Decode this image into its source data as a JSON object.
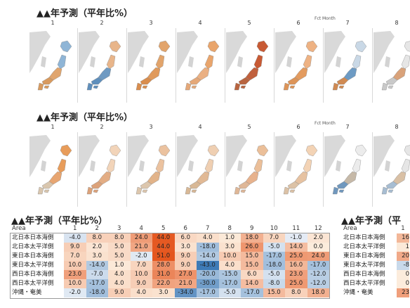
{
  "section1": {
    "title": "▲▲年予測（平年比%）",
    "fct_label": "Fct Month",
    "months": [
      "1",
      "2",
      "3",
      "4",
      "5",
      "6",
      "7",
      "8"
    ],
    "map_colors": [
      {
        "n": "#8fb5d6",
        "c": "#e0a56e",
        "s": "#d89a5e"
      },
      {
        "n": "#e8b58a",
        "c": "#6f9ac2",
        "s": "#5f8fbc"
      },
      {
        "n": "#e2a46b",
        "c": "#e09a5c",
        "s": "#d98d4d"
      },
      {
        "n": "#e9a56c",
        "c": "#eab083",
        "s": "#e5a878"
      },
      {
        "n": "#c85a34",
        "c": "#c0603d",
        "s": "#b8643f"
      },
      {
        "n": "#eeb283",
        "c": "#e39b5f",
        "s": "#dd9458"
      },
      {
        "n": "#c9d8e6",
        "c": "#6d9bc4",
        "s": "#d08a52"
      },
      {
        "n": "#e6e6e6",
        "c": "#d9a27a",
        "s": "#c9c9c9"
      }
    ]
  },
  "section2": {
    "title": "▲▲年予測（平年比%）",
    "fct_label": "Fct Month",
    "months": [
      "1",
      "2",
      "3",
      "4",
      "5",
      "6",
      "7",
      "8"
    ],
    "map_colors": [
      {
        "n": "#e89c5a",
        "c": "#e7a571",
        "s": "#d9c6ae"
      },
      {
        "n": "#f2d4b9",
        "c": "#e3ad84",
        "s": "#dca27a"
      },
      {
        "n": "#ebc29f",
        "c": "#e2b389",
        "s": "#dcc6ad"
      },
      {
        "n": "#efcfb2",
        "c": "#e1b995",
        "s": "#d8b896"
      },
      {
        "n": "#ebbf99",
        "c": "#e7b28d",
        "s": "#dfb797"
      },
      {
        "n": "#f3d3b5",
        "c": "#e6c2a1",
        "s": "#dcc2a6"
      },
      {
        "n": "#ececec",
        "c": "#c6b9a8",
        "s": "#7098be"
      },
      {
        "n": "#e6e6e6",
        "c": "#d9c0a5",
        "s": "#a7bdd2"
      }
    ]
  },
  "section3": {
    "title": "▲▲年予測（平年比%）",
    "area_label": "Area",
    "months": [
      "1",
      "2",
      "3",
      "4",
      "5",
      "6",
      "7",
      "8",
      "9",
      "10",
      "11",
      "12"
    ],
    "rows": [
      {
        "area": "北日本日本海側",
        "values": [
          "-4.0",
          "8.0",
          "8.0",
          "24.0",
          "44.0",
          "6.0",
          "4.0",
          "1.0",
          "18.0",
          "7.0",
          "-1.0",
          "2.0"
        ]
      },
      {
        "area": "北日本太平洋側",
        "values": [
          "9.0",
          "2.0",
          "5.0",
          "21.0",
          "44.0",
          "3.0",
          "-18.0",
          "3.0",
          "26.0",
          "-5.0",
          "14.0",
          "0.0"
        ]
      },
      {
        "area": "東日本日本海側",
        "values": [
          "7.0",
          "3.0",
          "5.0",
          "-2.0",
          "51.0",
          "9.0",
          "-14.0",
          "10.0",
          "15.0",
          "-17.0",
          "25.0",
          "24.0"
        ]
      },
      {
        "area": "東日本太平洋側",
        "values": [
          "10.0",
          "-14.0",
          "1.0",
          "7.0",
          "28.0",
          "9.0",
          "-43.0",
          "4.0",
          "15.0",
          "-18.0",
          "16.0",
          "-17.0"
        ]
      },
      {
        "area": "西日本日本海側",
        "values": [
          "23.0",
          "-7.0",
          "4.0",
          "10.0",
          "31.0",
          "27.0",
          "-20.0",
          "-15.0",
          "6.0",
          "-5.0",
          "23.0",
          "-12.0"
        ]
      },
      {
        "area": "西日本太平洋側",
        "values": [
          "10.0",
          "-17.0",
          "4.0",
          "9.0",
          "22.0",
          "21.0",
          "-30.0",
          "-17.0",
          "14.0",
          "-8.0",
          "25.0",
          "-12.0"
        ]
      },
      {
        "area": "沖縄・奄美",
        "values": [
          "-2.0",
          "-18.0",
          "9.0",
          "4.0",
          "3.0",
          "-34.0",
          "-17.0",
          "-5.0",
          "-17.0",
          "15.0",
          "8.0",
          "18.0"
        ]
      }
    ]
  },
  "section4": {
    "title": "▲▲年予測（平",
    "area_label": "Area",
    "first_month": "1",
    "rows": [
      {
        "area": "北日本日本海側",
        "value": "16"
      },
      {
        "area": "北日本太平洋側",
        "value": "1"
      },
      {
        "area": "東日本日本海側",
        "value": "20"
      },
      {
        "area": "東日本太平洋側",
        "value": "-8"
      },
      {
        "area": "西日本日本海側",
        "value": "0"
      },
      {
        "area": "西日本太平洋側",
        "value": "0"
      },
      {
        "area": "沖縄・奄美",
        "value": "23"
      }
    ]
  }
}
